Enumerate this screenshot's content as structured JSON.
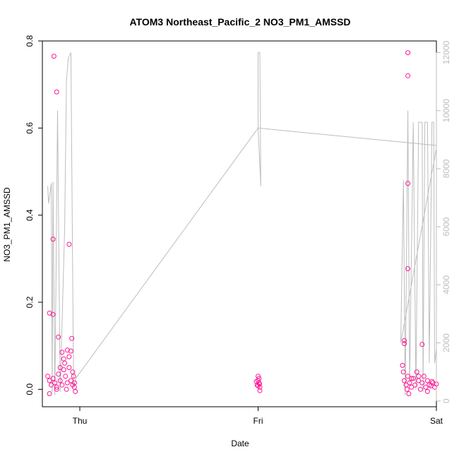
{
  "chart_data": {
    "type": "scatter",
    "title": "ATOM3 Northeast_Pacific_2 NO3_PM1_AMSSD",
    "xlabel": "Date",
    "ylabel": "NO3_PM1_AMSSD",
    "xlim": [
      -0.21,
      2.0
    ],
    "ylim": [
      -0.04,
      0.8
    ],
    "y2lim": [
      -200,
      12400
    ],
    "grid": false,
    "legend": "none",
    "x_ticks": [
      {
        "value": 0.0,
        "label": "Thu"
      },
      {
        "value": 1.0,
        "label": "Fri"
      },
      {
        "value": 2.0,
        "label": "Sat"
      }
    ],
    "y_ticks": [
      {
        "value": 0.0,
        "label": "0.0"
      },
      {
        "value": 0.2,
        "label": "0.2"
      },
      {
        "value": 0.4,
        "label": "0.4"
      },
      {
        "value": 0.6,
        "label": "0.6"
      },
      {
        "value": 0.8,
        "label": "0.8"
      }
    ],
    "y2_ticks": [
      {
        "value": 0,
        "label": "0"
      },
      {
        "value": 2000,
        "label": "2000"
      },
      {
        "value": 4000,
        "label": "4000"
      },
      {
        "value": 6000,
        "label": "6000"
      },
      {
        "value": 8000,
        "label": "8000"
      },
      {
        "value": 10000,
        "label": "10000"
      },
      {
        "value": 12000,
        "label": "12000"
      }
    ],
    "colors": {
      "points": "#ff1493",
      "line": "#bdbdbd",
      "axis": "#000000"
    },
    "series": [
      {
        "type": "points",
        "axis": "left",
        "points": [
          [
            -0.17,
            0.175
          ],
          [
            -0.145,
            0.765
          ],
          [
            -0.13,
            0.683
          ],
          [
            -0.15,
            0.345
          ],
          [
            -0.15,
            0.172
          ],
          [
            -0.12,
            0.12
          ],
          [
            -0.06,
            0.333
          ],
          [
            -0.045,
            0.117
          ],
          [
            -0.1,
            0.085
          ],
          [
            -0.09,
            0.07
          ],
          [
            -0.07,
            0.09
          ],
          [
            -0.05,
            0.088
          ],
          [
            -0.06,
            0.075
          ],
          [
            -0.18,
            0.03
          ],
          [
            -0.17,
            0.02
          ],
          [
            -0.16,
            0.01
          ],
          [
            -0.15,
            0.025
          ],
          [
            -0.14,
            0.015
          ],
          [
            -0.13,
            0.005
          ],
          [
            -0.12,
            0.035
          ],
          [
            -0.11,
            0.02
          ],
          [
            -0.1,
            0.01
          ],
          [
            -0.09,
            0.045
          ],
          [
            -0.08,
            0.03
          ],
          [
            -0.07,
            0.015
          ],
          [
            -0.06,
            0.05
          ],
          [
            -0.05,
            0.02
          ],
          [
            -0.04,
            0.01
          ],
          [
            -0.035,
            0.03
          ],
          [
            -0.03,
            0.005
          ],
          [
            -0.025,
            -0.005
          ],
          [
            -0.03,
            0.015
          ],
          [
            -0.04,
            0.04
          ],
          [
            -0.17,
            -0.01
          ],
          [
            -0.13,
            0.0
          ],
          [
            -0.11,
            0.05
          ],
          [
            -0.085,
            0.06
          ],
          [
            -0.075,
            0.0
          ],
          [
            1.0,
            0.03
          ],
          [
            1.0,
            0.02
          ],
          [
            1.005,
            0.015
          ],
          [
            1.01,
            0.005
          ],
          [
            0.995,
            0.01
          ],
          [
            1.005,
            0.025
          ],
          [
            1.01,
            -0.003
          ],
          [
            0.99,
            0.018
          ],
          [
            1.0,
            0.008
          ],
          [
            1.008,
            0.012
          ],
          [
            1.82,
            0.112
          ],
          [
            1.82,
            0.105
          ],
          [
            1.84,
            0.773
          ],
          [
            1.84,
            0.72
          ],
          [
            1.84,
            0.473
          ],
          [
            1.84,
            0.277
          ],
          [
            1.92,
            0.103
          ],
          [
            1.81,
            0.055
          ],
          [
            1.815,
            0.04
          ],
          [
            1.82,
            0.02
          ],
          [
            1.83,
            0.01
          ],
          [
            1.835,
            0.0
          ],
          [
            1.84,
            0.03
          ],
          [
            1.85,
            0.015
          ],
          [
            1.86,
            0.005
          ],
          [
            1.87,
            0.025
          ],
          [
            1.88,
            0.01
          ],
          [
            1.89,
            0.04
          ],
          [
            1.9,
            0.02
          ],
          [
            1.91,
            0.0
          ],
          [
            1.92,
            0.015
          ],
          [
            1.93,
            0.03
          ],
          [
            1.94,
            0.005
          ],
          [
            1.95,
            0.02
          ],
          [
            1.96,
            0.01
          ],
          [
            1.97,
            0.008
          ],
          [
            1.98,
            0.015
          ],
          [
            1.99,
            0.005
          ],
          [
            2.0,
            0.012
          ],
          [
            1.845,
            -0.01
          ],
          [
            1.86,
            0.025
          ],
          [
            1.9,
            0.03
          ],
          [
            1.95,
            -0.005
          ],
          [
            1.975,
            0.018
          ]
        ]
      },
      {
        "type": "line",
        "axis": "right",
        "points": [
          [
            -0.18,
            7400
          ],
          [
            -0.175,
            6800
          ],
          [
            -0.16,
            7500
          ],
          [
            -0.155,
            300
          ],
          [
            -0.15,
            7550
          ],
          [
            -0.14,
            200
          ],
          [
            -0.125,
            10000
          ],
          [
            -0.11,
            300
          ],
          [
            -0.085,
            6000
          ],
          [
            -0.075,
            11000
          ],
          [
            -0.065,
            11800
          ],
          [
            -0.05,
            12000
          ],
          [
            -0.035,
            500
          ],
          [
            -0.02,
            800
          ],
          [
            1.0,
            9400
          ],
          [
            1.0,
            12000
          ],
          [
            1.01,
            12000
          ],
          [
            1.015,
            7400
          ],
          [
            1.0,
            9400
          ],
          [
            2.0,
            8800
          ],
          [
            2.0,
            8700
          ],
          [
            1.8,
            2000
          ],
          [
            1.815,
            7600
          ],
          [
            1.825,
            200
          ],
          [
            1.84,
            10000
          ],
          [
            1.85,
            500
          ],
          [
            1.87,
            9600
          ],
          [
            1.885,
            400
          ],
          [
            1.9,
            9600
          ],
          [
            1.92,
            9600
          ],
          [
            1.925,
            300
          ],
          [
            1.935,
            9600
          ],
          [
            1.95,
            9600
          ],
          [
            1.96,
            1300
          ],
          [
            1.975,
            9600
          ],
          [
            1.985,
            9600
          ],
          [
            1.99,
            1300
          ],
          [
            2.0,
            1800
          ]
        ]
      }
    ]
  }
}
